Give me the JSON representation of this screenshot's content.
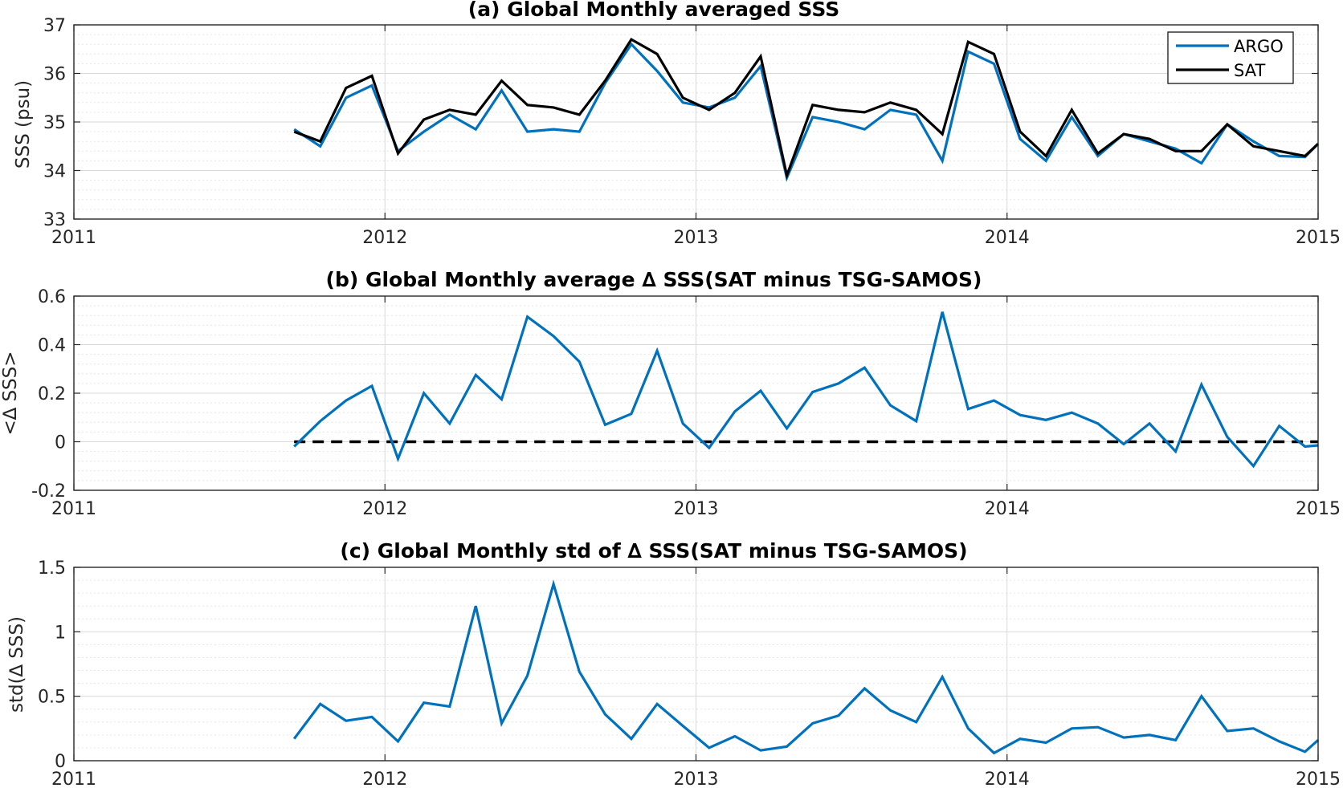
{
  "colors": {
    "argo": "#0072BD",
    "sat": "#000000",
    "zero_line": "#000000",
    "grid_major": "#d9d9d9",
    "grid_minor": "#e6e6e6",
    "axis": "#262626"
  },
  "chart_data": [
    {
      "type": "line",
      "title": "(a) Global Monthly averaged SSS",
      "xlabel": "",
      "ylabel": "SSS (psu)",
      "xlim": [
        2011,
        2015
      ],
      "ylim": [
        33,
        37
      ],
      "xticks": [
        2011,
        2012,
        2013,
        2014,
        2015
      ],
      "yticks": [
        33,
        34,
        35,
        36,
        37
      ],
      "grid": true,
      "minor_grid": true,
      "legend": {
        "placement": "top-right",
        "entries": [
          "ARGO",
          "SAT"
        ]
      },
      "series": [
        {
          "name": "ARGO",
          "color": "#0072BD",
          "x": [
            2011.708,
            2011.792,
            2011.875,
            2011.958,
            2012.042,
            2012.125,
            2012.208,
            2012.292,
            2012.375,
            2012.458,
            2012.542,
            2012.625,
            2012.708,
            2012.792,
            2012.875,
            2012.958,
            2013.042,
            2013.125,
            2013.208,
            2013.292,
            2013.375,
            2013.458,
            2013.542,
            2013.625,
            2013.708,
            2013.792,
            2013.875,
            2013.958,
            2014.042,
            2014.125,
            2014.208,
            2014.292,
            2014.375,
            2014.458,
            2014.542,
            2014.625,
            2014.708,
            2014.792,
            2014.875,
            2014.958,
            2015.0
          ],
          "y": [
            34.85,
            34.5,
            35.5,
            35.75,
            34.4,
            34.8,
            35.15,
            34.85,
            35.65,
            34.8,
            34.85,
            34.8,
            35.8,
            36.6,
            36.05,
            35.4,
            35.3,
            35.5,
            36.15,
            33.85,
            35.1,
            35.0,
            34.85,
            35.25,
            35.15,
            34.2,
            36.45,
            36.2,
            34.65,
            34.2,
            35.1,
            34.3,
            34.75,
            34.6,
            34.45,
            34.15,
            34.95,
            34.6,
            34.3,
            34.28,
            34.55
          ]
        },
        {
          "name": "SAT",
          "color": "#000000",
          "x": [
            2011.708,
            2011.792,
            2011.875,
            2011.958,
            2012.042,
            2012.125,
            2012.208,
            2012.292,
            2012.375,
            2012.458,
            2012.542,
            2012.625,
            2012.708,
            2012.792,
            2012.875,
            2012.958,
            2013.042,
            2013.125,
            2013.208,
            2013.292,
            2013.375,
            2013.458,
            2013.542,
            2013.625,
            2013.708,
            2013.792,
            2013.875,
            2013.958,
            2014.042,
            2014.125,
            2014.208,
            2014.292,
            2014.375,
            2014.458,
            2014.542,
            2014.625,
            2014.708,
            2014.792,
            2014.875,
            2014.958,
            2015.0
          ],
          "y": [
            34.8,
            34.6,
            35.7,
            35.95,
            34.35,
            35.05,
            35.25,
            35.15,
            35.85,
            35.35,
            35.3,
            35.15,
            35.85,
            36.7,
            36.4,
            35.5,
            35.25,
            35.6,
            36.35,
            33.9,
            35.35,
            35.25,
            35.2,
            35.4,
            35.25,
            34.75,
            36.65,
            36.4,
            34.8,
            34.3,
            35.25,
            34.35,
            34.75,
            34.65,
            34.4,
            34.4,
            34.95,
            34.5,
            34.4,
            34.3,
            34.55
          ]
        }
      ]
    },
    {
      "type": "line",
      "title": "(b) Global Monthly average ∆ SSS(SAT minus TSG-SAMOS)",
      "xlabel": "",
      "ylabel": "<∆ SSS>",
      "xlim": [
        2011,
        2015
      ],
      "ylim": [
        -0.2,
        0.6
      ],
      "xticks": [
        2011,
        2012,
        2013,
        2014,
        2015
      ],
      "yticks": [
        -0.2,
        0,
        0.2,
        0.4,
        0.6
      ],
      "ytick_labels": [
        "-0.2",
        "0",
        "0.2",
        "0.4",
        "0.6"
      ],
      "grid": true,
      "minor_grid": true,
      "reference_line": {
        "y": 0,
        "style": "dashed",
        "x_range": [
          2011.708,
          2015.0
        ]
      },
      "series": [
        {
          "color": "#0072BD",
          "x": [
            2011.708,
            2011.792,
            2011.875,
            2011.958,
            2012.042,
            2012.125,
            2012.208,
            2012.292,
            2012.375,
            2012.458,
            2012.542,
            2012.625,
            2012.708,
            2012.792,
            2012.875,
            2012.958,
            2013.042,
            2013.125,
            2013.208,
            2013.292,
            2013.375,
            2013.458,
            2013.542,
            2013.625,
            2013.708,
            2013.792,
            2013.875,
            2013.958,
            2014.042,
            2014.125,
            2014.208,
            2014.292,
            2014.375,
            2014.458,
            2014.542,
            2014.625,
            2014.708,
            2014.792,
            2014.875,
            2014.958,
            2015.0
          ],
          "y": [
            -0.02,
            0.085,
            0.17,
            0.23,
            -0.07,
            0.2,
            0.075,
            0.275,
            0.175,
            0.515,
            0.435,
            0.33,
            0.07,
            0.115,
            0.375,
            0.075,
            -0.025,
            0.125,
            0.21,
            0.055,
            0.205,
            0.24,
            0.305,
            0.15,
            0.085,
            0.535,
            0.135,
            0.17,
            0.11,
            0.09,
            0.12,
            0.075,
            -0.01,
            0.075,
            -0.04,
            0.235,
            0.02,
            -0.1,
            0.065,
            -0.02,
            -0.015
          ]
        }
      ]
    },
    {
      "type": "line",
      "title": "(c) Global Monthly std of ∆ SSS(SAT minus TSG-SAMOS)",
      "xlabel": "",
      "ylabel": "std(∆ SSS)",
      "xlim": [
        2011,
        2015
      ],
      "ylim": [
        0,
        1.5
      ],
      "xticks": [
        2011,
        2012,
        2013,
        2014,
        2015
      ],
      "yticks": [
        0,
        0.5,
        1,
        1.5
      ],
      "ytick_labels": [
        "0",
        "0.5",
        "1",
        "1.5"
      ],
      "grid": true,
      "minor_grid": true,
      "series": [
        {
          "color": "#0072BD",
          "x": [
            2011.708,
            2011.792,
            2011.875,
            2011.958,
            2012.042,
            2012.125,
            2012.208,
            2012.292,
            2012.375,
            2012.458,
            2012.542,
            2012.625,
            2012.708,
            2012.792,
            2012.875,
            2012.958,
            2013.042,
            2013.125,
            2013.208,
            2013.292,
            2013.375,
            2013.458,
            2013.542,
            2013.625,
            2013.708,
            2013.792,
            2013.875,
            2013.958,
            2014.042,
            2014.125,
            2014.208,
            2014.292,
            2014.375,
            2014.458,
            2014.542,
            2014.625,
            2014.708,
            2014.792,
            2014.875,
            2014.958,
            2015.0
          ],
          "y": [
            0.17,
            0.44,
            0.31,
            0.34,
            0.15,
            0.45,
            0.42,
            1.2,
            0.29,
            0.66,
            1.37,
            0.69,
            0.36,
            0.17,
            0.44,
            0.27,
            0.1,
            0.19,
            0.08,
            0.11,
            0.29,
            0.35,
            0.56,
            0.39,
            0.3,
            0.65,
            0.25,
            0.06,
            0.17,
            0.14,
            0.25,
            0.26,
            0.18,
            0.2,
            0.16,
            0.5,
            0.23,
            0.25,
            0.15,
            0.07,
            0.16
          ]
        }
      ]
    }
  ]
}
